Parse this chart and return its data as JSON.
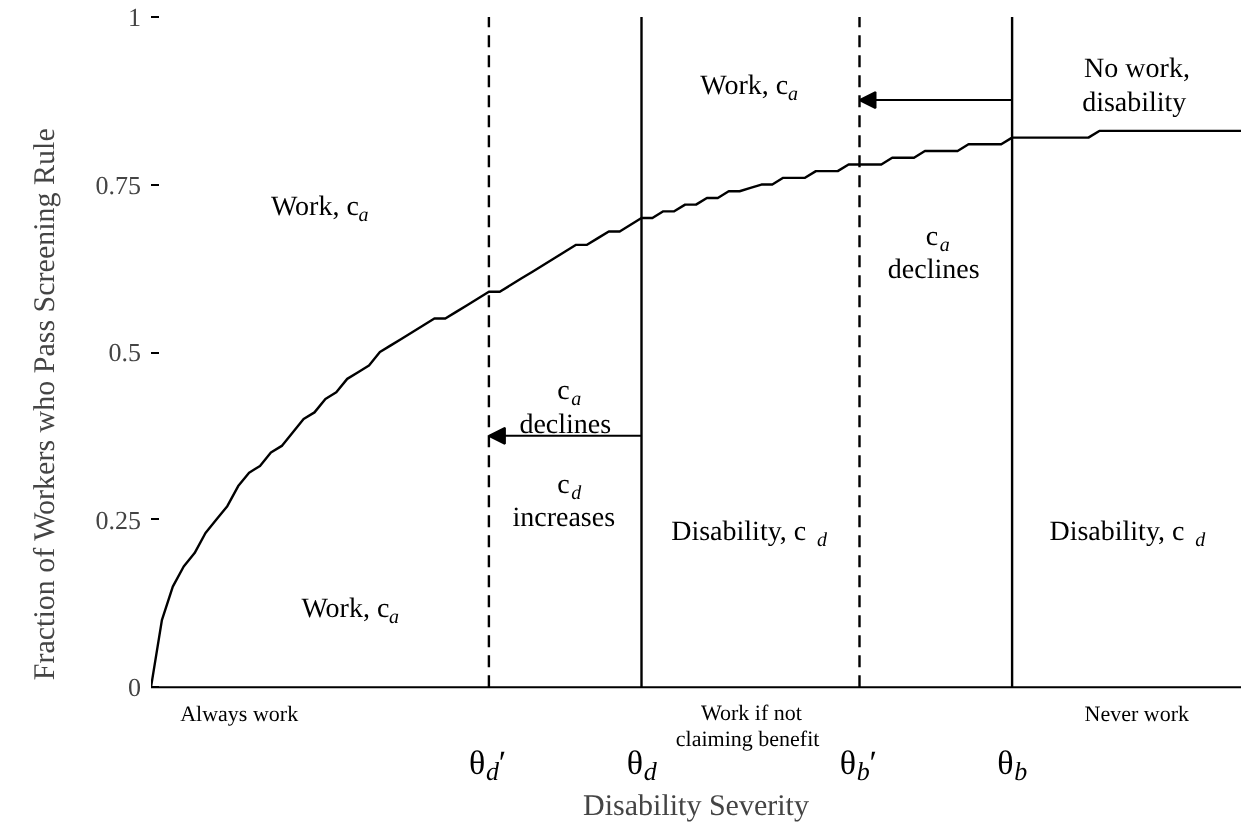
{
  "chart_data": {
    "type": "line",
    "xlabel": "Disability Severity",
    "ylabel": "Fraction of Workers who Pass Screening Rule",
    "categories": [
      null,
      null,
      null,
      null,
      null,
      null,
      null,
      null,
      null,
      null,
      null,
      null,
      null,
      null,
      null,
      null,
      null,
      null,
      null,
      null,
      null,
      null,
      null,
      null,
      null,
      null,
      null,
      null,
      null,
      null,
      null,
      "θ$_{d}$′",
      null,
      null,
      null,
      null,
      null,
      null,
      null,
      null,
      null,
      null,
      null,
      null,
      null,
      "θ$_{d}$",
      null,
      null,
      null,
      null,
      null,
      null,
      null,
      null,
      null,
      null,
      null,
      null,
      null,
      null,
      null,
      null,
      null,
      null,
      null,
      "θ$_{b}$′",
      null,
      null,
      null,
      null,
      null,
      null,
      null,
      null,
      null,
      null,
      null,
      null,
      null,
      "θ$_{b}$",
      null,
      null,
      null,
      null,
      null,
      null,
      null,
      null,
      null,
      null,
      null,
      null,
      null,
      null,
      null,
      null,
      null,
      null,
      null,
      null,
      null
    ],
    "ylim": [
      0,
      1
    ],
    "yticks": [
      0,
      0.25,
      0.5,
      0.75,
      1
    ],
    "grid": false,
    "marker": "none",
    "line_style": "solid",
    "series": [
      {
        "color": "#000000",
        "values": [
          0,
          0.1,
          0.15,
          0.18,
          0.2,
          0.23,
          0.25,
          0.27,
          0.3,
          0.32,
          0.33,
          0.35,
          0.36,
          0.38,
          0.4,
          0.41,
          0.43,
          0.44,
          0.46,
          0.47,
          0.48,
          0.5,
          0.51,
          0.52,
          0.53,
          0.54,
          0.55,
          0.55,
          0.56,
          0.57,
          0.58,
          0.59,
          0.59,
          0.6,
          0.61,
          0.62,
          0.63,
          0.64,
          0.65,
          0.66,
          0.66,
          0.67,
          0.68,
          0.68,
          0.69,
          0.7,
          0.7,
          0.71,
          0.71,
          0.72,
          0.72,
          0.73,
          0.73,
          0.74,
          0.74,
          0.745,
          0.75,
          0.75,
          0.76,
          0.76,
          0.76,
          0.77,
          0.77,
          0.77,
          0.78,
          0.78,
          0.78,
          0.78,
          0.79,
          0.79,
          0.79,
          0.8,
          0.8,
          0.8,
          0.8,
          0.81,
          0.81,
          0.81,
          0.81,
          0.82,
          0.82,
          0.82,
          0.82,
          0.82,
          0.82,
          0.82,
          0.82,
          0.83,
          0.83,
          0.83,
          0.83,
          0.83,
          0.83,
          0.83,
          0.83,
          0.83,
          0.83,
          0.83,
          0.83,
          0.83,
          0.83
        ]
      }
    ],
    "ref_lines": [
      {
        "axis": "x",
        "value": "θ$_{d}$′",
        "color": "#000000",
        "line_style": "dashed"
      },
      {
        "axis": "x",
        "value": "θ$_{d}$",
        "color": "#000000",
        "line_style": "solid"
      },
      {
        "axis": "x",
        "value": "θ$_{b}$′",
        "color": "#000000",
        "line_style": "dashed"
      },
      {
        "axis": "x",
        "value": "θ$_{b}$",
        "color": "#000000",
        "line_style": "solid"
      }
    ],
    "annotations": [
      "Work, c$_{a}$",
      "Work, c$_{a}$",
      "c$_{a}$\ndeclines",
      "c$_{d}$\nincreases",
      "Work, c$_{a}$",
      "Disability, c$_{d}$",
      "c$_{a}$\ndeclines",
      "No work,\ndisability",
      "Disability, c$_{d}$",
      "Always work",
      "Work if not\nclaiming benefit",
      "Never work"
    ]
  }
}
